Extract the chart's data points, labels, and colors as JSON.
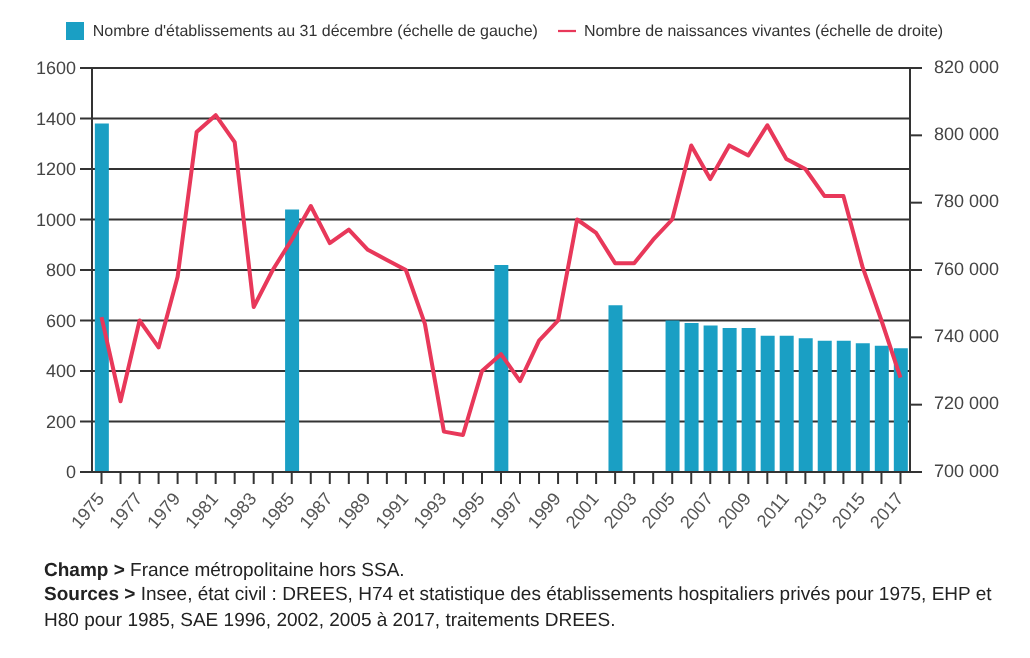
{
  "chart_data": {
    "type": "bar",
    "categories": [
      "1975",
      null,
      "1977",
      null,
      "1979",
      null,
      "1981",
      null,
      "1983",
      null,
      "1985",
      null,
      "1987",
      null,
      "1989",
      null,
      "1991",
      null,
      "1993",
      null,
      "1995",
      null,
      "1997",
      null,
      "1999",
      null,
      "2001",
      null,
      "2003",
      null,
      "2005",
      null,
      "2007",
      null,
      "2009",
      null,
      "2011",
      null,
      "2013",
      null,
      "2015",
      null,
      "2017"
    ],
    "series": [
      {
        "name": "Nombre d'établissements au 31 décembre (échelle de gauche)",
        "color": "#1a9fc4",
        "values": [
          1380,
          null,
          null,
          null,
          null,
          null,
          null,
          null,
          null,
          null,
          1040,
          null,
          null,
          null,
          null,
          null,
          null,
          null,
          null,
          null,
          null,
          820,
          null,
          null,
          null,
          null,
          null,
          660,
          null,
          null,
          600,
          590,
          580,
          570,
          570,
          540,
          540,
          530,
          520,
          520,
          510,
          500,
          490
        ]
      },
      {
        "name": "Nombre de naissances vivantes (échelle de droite)",
        "type": "line",
        "axis": "y2",
        "color": "#e8385a",
        "values": [
          746000,
          721000,
          745000,
          737000,
          758000,
          801000,
          806000,
          798000,
          749000,
          760000,
          769000,
          779000,
          768000,
          772000,
          766000,
          763000,
          760000,
          744000,
          712000,
          711000,
          730000,
          735000,
          727000,
          739000,
          745000,
          775000,
          771000,
          762000,
          762000,
          769000,
          775000,
          797000,
          787000,
          797000,
          794000,
          803000,
          793000,
          790000,
          782000,
          782000,
          761000,
          745000,
          728000
        ]
      }
    ],
    "ylim": [
      0,
      1600
    ],
    "yticks": [
      0,
      200,
      400,
      600,
      800,
      1000,
      1200,
      1400,
      1600
    ],
    "y2lim": [
      700000,
      820000
    ],
    "y2ticks": [
      {
        "value": 700000,
        "label": "700 000"
      },
      {
        "value": 720000,
        "label": "720 000"
      },
      {
        "value": 740000,
        "label": "740 000"
      },
      {
        "value": 760000,
        "label": "760 000"
      },
      {
        "value": 780000,
        "label": "780 000"
      },
      {
        "value": 800000,
        "label": "800 000"
      },
      {
        "value": 820000,
        "label": "820 000"
      }
    ],
    "grid": "y",
    "legend": "top",
    "marker": "none",
    "line_style": "solid",
    "annotations": [
      "Champ > France métropolitaine hors SSA.",
      "Sources > Insee, état civil : DREES, H74 et statistique des établissements hospitaliers privés pour 1975, EHP et H80 pour 1985, SAE 1996, 2002, 2005 à 2017, traitements DREES."
    ]
  }
}
